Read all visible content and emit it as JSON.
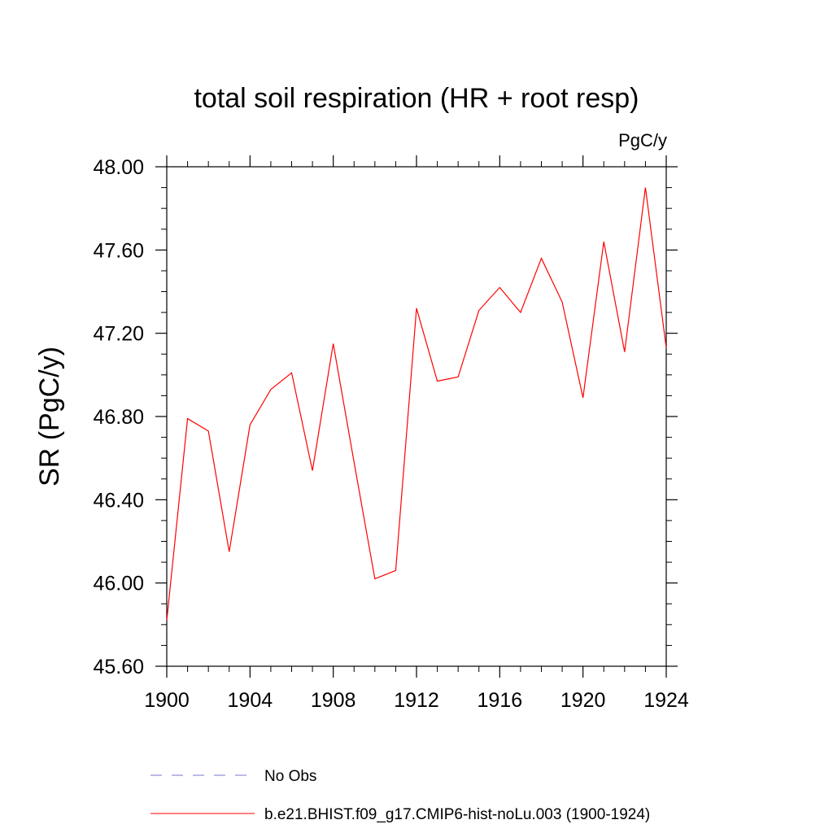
{
  "chart_data": {
    "type": "line",
    "title": "total soil respiration (HR + root resp)",
    "units_label": "PgC/y",
    "ylabel": "SR  (PgC/y)",
    "xlabel": "",
    "xlim": [
      1900,
      1924
    ],
    "ylim": [
      45.6,
      48.0
    ],
    "x_ticks": [
      1900,
      1904,
      1908,
      1912,
      1916,
      1920,
      1924
    ],
    "x_tick_labels": [
      "1900",
      "1904",
      "1908",
      "1912",
      "1916",
      "1920",
      "1924"
    ],
    "y_ticks": [
      45.6,
      46.0,
      46.4,
      46.8,
      47.2,
      47.6,
      48.0
    ],
    "y_tick_labels": [
      "45.60",
      "46.00",
      "46.40",
      "46.80",
      "47.20",
      "47.60",
      "48.00"
    ],
    "grid": false,
    "legend_position": "bottom",
    "series": [
      {
        "name": "b.e21.BHIST.f09_g17.CMIP6-hist-noLu.003 (1900-1924)",
        "color": "#ff0000",
        "style": "solid",
        "x": [
          1900,
          1901,
          1902,
          1903,
          1904,
          1905,
          1906,
          1907,
          1908,
          1909,
          1910,
          1911,
          1912,
          1913,
          1914,
          1915,
          1916,
          1917,
          1918,
          1919,
          1920,
          1921,
          1922,
          1923,
          1924
        ],
        "values": [
          45.82,
          46.79,
          46.73,
          46.15,
          46.76,
          46.93,
          47.01,
          46.54,
          47.15,
          46.58,
          46.02,
          46.06,
          47.32,
          46.97,
          46.99,
          47.31,
          47.42,
          47.3,
          47.56,
          47.35,
          46.89,
          47.64,
          47.11,
          47.9,
          47.13
        ]
      },
      {
        "name": "No Obs",
        "color": "#7777cc",
        "style": "dashed",
        "x": [],
        "values": []
      }
    ]
  }
}
